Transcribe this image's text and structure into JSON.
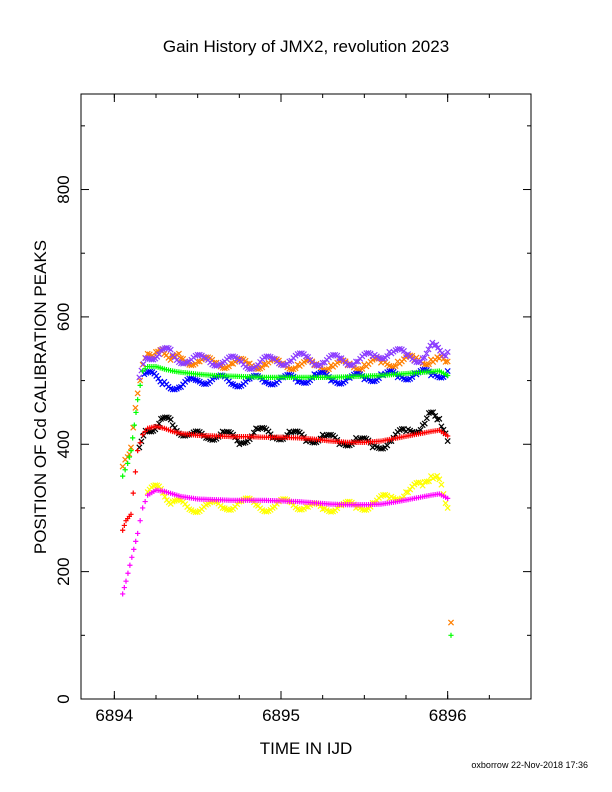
{
  "chart_data": {
    "type": "scatter",
    "title": "Gain History of JMX2, revolution 2023",
    "xlabel": "TIME IN IJD",
    "ylabel": "POSITION OF Cd CALIBRATION PEAKS",
    "xlim": [
      6893.8,
      6896.5
    ],
    "ylim": [
      0,
      950
    ],
    "x_ticks": [
      6894,
      6895,
      6896
    ],
    "x_tick_labels": [
      "6894",
      "6895",
      "6896"
    ],
    "y_ticks": [
      0,
      200,
      400,
      600,
      800
    ],
    "y_tick_labels": [
      "0",
      "200",
      "400",
      "600",
      "800"
    ],
    "grid": false,
    "legend": "none",
    "series": [
      {
        "color": "#ff7f00",
        "marker": "x",
        "points": [
          [
            6894.05,
            365
          ],
          [
            6894.08,
            380
          ],
          [
            6894.1,
            395
          ],
          [
            6894.14,
            480
          ],
          [
            6894.17,
            525
          ],
          [
            6894.2,
            542
          ],
          [
            6894.25,
            545
          ],
          [
            6894.3,
            542
          ],
          [
            6894.35,
            538
          ],
          [
            6894.4,
            535
          ],
          [
            6894.5,
            530
          ],
          [
            6894.6,
            528
          ],
          [
            6894.7,
            527
          ],
          [
            6894.8,
            526
          ],
          [
            6894.9,
            526
          ],
          [
            6895.0,
            526
          ],
          [
            6895.1,
            525
          ],
          [
            6895.2,
            524
          ],
          [
            6895.3,
            524
          ],
          [
            6895.4,
            524
          ],
          [
            6895.5,
            525
          ],
          [
            6895.6,
            528
          ],
          [
            6895.7,
            530
          ],
          [
            6895.8,
            532
          ],
          [
            6895.9,
            533
          ],
          [
            6895.95,
            535
          ],
          [
            6896.0,
            530
          ],
          [
            6896.02,
            120
          ]
        ]
      },
      {
        "color": "#8b3cff",
        "marker": "x",
        "points": [
          [
            6894.15,
            505
          ],
          [
            6894.2,
            535
          ],
          [
            6894.28,
            548
          ],
          [
            6894.35,
            540
          ],
          [
            6894.45,
            530
          ],
          [
            6894.55,
            535
          ],
          [
            6894.65,
            528
          ],
          [
            6894.75,
            532
          ],
          [
            6894.85,
            522
          ],
          [
            6894.95,
            535
          ],
          [
            6895.05,
            530
          ],
          [
            6895.15,
            538
          ],
          [
            6895.25,
            528
          ],
          [
            6895.35,
            535
          ],
          [
            6895.45,
            530
          ],
          [
            6895.55,
            538
          ],
          [
            6895.65,
            545
          ],
          [
            6895.75,
            540
          ],
          [
            6895.85,
            535
          ],
          [
            6895.92,
            555
          ],
          [
            6896.0,
            545
          ]
        ]
      },
      {
        "color": "#0000ff",
        "marker": "x",
        "points": [
          [
            6894.18,
            510
          ],
          [
            6894.3,
            498
          ],
          [
            6894.4,
            490
          ],
          [
            6894.5,
            500
          ],
          [
            6894.6,
            505
          ],
          [
            6894.7,
            495
          ],
          [
            6894.8,
            502
          ],
          [
            6894.9,
            498
          ],
          [
            6895.0,
            505
          ],
          [
            6895.1,
            498
          ],
          [
            6895.2,
            510
          ],
          [
            6895.3,
            500
          ],
          [
            6895.4,
            505
          ],
          [
            6895.5,
            502
          ],
          [
            6895.6,
            510
          ],
          [
            6895.7,
            505
          ],
          [
            6895.8,
            512
          ],
          [
            6895.9,
            508
          ],
          [
            6896.0,
            515
          ]
        ]
      },
      {
        "color": "#00ff00",
        "marker": "+",
        "points": [
          [
            6894.05,
            350
          ],
          [
            6894.08,
            370
          ],
          [
            6894.1,
            390
          ],
          [
            6894.12,
            430
          ],
          [
            6894.14,
            470
          ],
          [
            6894.17,
            515
          ],
          [
            6894.2,
            522
          ],
          [
            6894.25,
            522
          ],
          [
            6894.3,
            518
          ],
          [
            6894.35,
            515
          ],
          [
            6894.4,
            513
          ],
          [
            6894.5,
            510
          ],
          [
            6894.6,
            508
          ],
          [
            6894.7,
            507
          ],
          [
            6894.8,
            506
          ],
          [
            6894.9,
            505
          ],
          [
            6895.0,
            505
          ],
          [
            6895.1,
            505
          ],
          [
            6895.2,
            505
          ],
          [
            6895.3,
            505
          ],
          [
            6895.4,
            506
          ],
          [
            6895.5,
            507
          ],
          [
            6895.6,
            508
          ],
          [
            6895.7,
            510
          ],
          [
            6895.8,
            512
          ],
          [
            6895.9,
            514
          ],
          [
            6895.95,
            515
          ],
          [
            6896.0,
            508
          ],
          [
            6896.02,
            100
          ]
        ]
      },
      {
        "color": "#000000",
        "marker": "x",
        "points": [
          [
            6894.15,
            395
          ],
          [
            6894.2,
            420
          ],
          [
            6894.28,
            440
          ],
          [
            6894.35,
            430
          ],
          [
            6894.45,
            415
          ],
          [
            6894.55,
            410
          ],
          [
            6894.65,
            420
          ],
          [
            6894.75,
            400
          ],
          [
            6894.85,
            425
          ],
          [
            6894.95,
            410
          ],
          [
            6895.05,
            420
          ],
          [
            6895.15,
            405
          ],
          [
            6895.25,
            415
          ],
          [
            6895.35,
            400
          ],
          [
            6895.45,
            410
          ],
          [
            6895.55,
            395
          ],
          [
            6895.65,
            405
          ],
          [
            6895.75,
            420
          ],
          [
            6895.85,
            430
          ],
          [
            6895.9,
            450
          ],
          [
            6895.95,
            440
          ],
          [
            6896.0,
            405
          ]
        ]
      },
      {
        "color": "#ff0000",
        "marker": "+",
        "points": [
          [
            6894.05,
            265
          ],
          [
            6894.07,
            280
          ],
          [
            6894.1,
            290
          ],
          [
            6894.14,
            390
          ],
          [
            6894.17,
            415
          ],
          [
            6894.2,
            425
          ],
          [
            6894.25,
            428
          ],
          [
            6894.3,
            425
          ],
          [
            6894.35,
            420
          ],
          [
            6894.4,
            417
          ],
          [
            6894.5,
            414
          ],
          [
            6894.6,
            413
          ],
          [
            6894.7,
            412
          ],
          [
            6894.8,
            412
          ],
          [
            6894.9,
            411
          ],
          [
            6895.0,
            411
          ],
          [
            6895.1,
            410
          ],
          [
            6895.2,
            408
          ],
          [
            6895.3,
            405
          ],
          [
            6895.4,
            403
          ],
          [
            6895.5,
            403
          ],
          [
            6895.6,
            405
          ],
          [
            6895.7,
            410
          ],
          [
            6895.8,
            415
          ],
          [
            6895.9,
            420
          ],
          [
            6895.95,
            422
          ],
          [
            6896.0,
            413
          ]
        ]
      },
      {
        "color": "#ffff00",
        "marker": "x",
        "points": [
          [
            6894.2,
            325
          ],
          [
            6894.28,
            330
          ],
          [
            6894.35,
            310
          ],
          [
            6894.45,
            298
          ],
          [
            6894.55,
            305
          ],
          [
            6894.65,
            300
          ],
          [
            6894.75,
            310
          ],
          [
            6894.85,
            305
          ],
          [
            6894.95,
            300
          ],
          [
            6895.05,
            310
          ],
          [
            6895.15,
            302
          ],
          [
            6895.25,
            298
          ],
          [
            6895.35,
            305
          ],
          [
            6895.45,
            300
          ],
          [
            6895.55,
            308
          ],
          [
            6895.65,
            315
          ],
          [
            6895.75,
            325
          ],
          [
            6895.85,
            335
          ],
          [
            6895.9,
            350
          ],
          [
            6895.95,
            345
          ],
          [
            6896.0,
            300
          ]
        ]
      },
      {
        "color": "#ff00ff",
        "marker": "+",
        "points": [
          [
            6894.05,
            165
          ],
          [
            6894.06,
            175
          ],
          [
            6894.07,
            185
          ],
          [
            6894.14,
            260
          ],
          [
            6894.17,
            300
          ],
          [
            6894.2,
            320
          ],
          [
            6894.25,
            328
          ],
          [
            6894.3,
            326
          ],
          [
            6894.35,
            322
          ],
          [
            6894.4,
            318
          ],
          [
            6894.5,
            314
          ],
          [
            6894.6,
            313
          ],
          [
            6894.7,
            312
          ],
          [
            6894.8,
            312
          ],
          [
            6894.9,
            312
          ],
          [
            6895.0,
            311
          ],
          [
            6895.1,
            310
          ],
          [
            6895.2,
            308
          ],
          [
            6895.3,
            306
          ],
          [
            6895.4,
            305
          ],
          [
            6895.5,
            305
          ],
          [
            6895.6,
            306
          ],
          [
            6895.7,
            310
          ],
          [
            6895.8,
            315
          ],
          [
            6895.9,
            320
          ],
          [
            6895.95,
            322
          ],
          [
            6896.0,
            315
          ]
        ]
      }
    ]
  },
  "footer": {
    "text": "oxborrow 22-Nov-2018 17:36"
  }
}
